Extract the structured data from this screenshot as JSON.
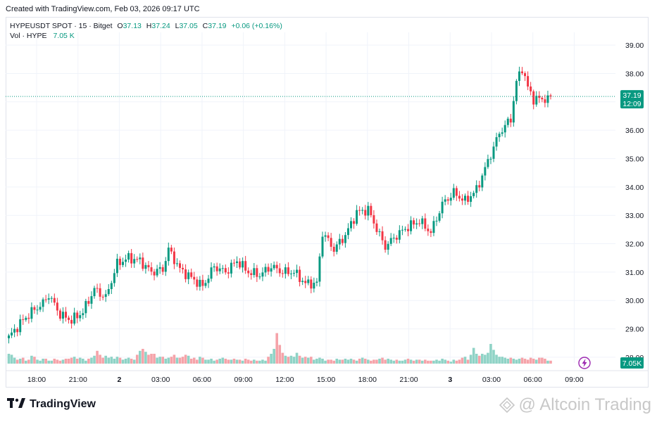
{
  "created_text": "Created with TradingView.com, Feb 03, 2026 09:17 UTC",
  "legend": {
    "symbol": "HYPEUSDT SPOT · 15 · Bitget",
    "open_label": "O",
    "open": "37.13",
    "high_label": "H",
    "high": "37.24",
    "low_label": "L",
    "low": "37.05",
    "close_label": "C",
    "close": "37.19",
    "change": "+0.06 (+0.16%)",
    "vol_label": "Vol · HYPE",
    "vol_value": "7.05 K"
  },
  "price_tag": {
    "price": "37.19",
    "countdown": "12:09"
  },
  "volume_tag": "7.05K",
  "branding": {
    "logo_text": "TradingView",
    "watermark": "@ Altcoin Trading"
  },
  "colors": {
    "up": "#089981",
    "down": "#f23645",
    "vol_up": "#8fd3c6",
    "vol_down": "#f5a3a9",
    "grid": "#f0f3fa",
    "axis_text": "#131722"
  },
  "chart_data": {
    "type": "candlestick",
    "symbol": "HYPEUSDT SPOT",
    "interval": "15",
    "exchange": "Bitget",
    "ylim": [
      27.8,
      39.3
    ],
    "y_ticks": [
      "39.00",
      "38.00",
      "37.00",
      "36.00",
      "35.00",
      "34.00",
      "33.00",
      "32.00",
      "31.00",
      "30.00",
      "29.00",
      "28.00"
    ],
    "x_ticks": [
      "18:00",
      "21:00",
      "2",
      "03:00",
      "06:00",
      "09:00",
      "12:00",
      "15:00",
      "18:00",
      "21:00",
      "3",
      "03:00",
      "06:00",
      "09:00"
    ],
    "last_price": 37.19,
    "close_anchors": [
      [
        0,
        28.7
      ],
      [
        4,
        29.2
      ],
      [
        8,
        29.6
      ],
      [
        12,
        29.9
      ],
      [
        14,
        30.2
      ],
      [
        18,
        29.5
      ],
      [
        22,
        29.3
      ],
      [
        26,
        29.6
      ],
      [
        30,
        30.4
      ],
      [
        34,
        30.1
      ],
      [
        38,
        31.3
      ],
      [
        42,
        31.5
      ],
      [
        46,
        31.4
      ],
      [
        50,
        31.0
      ],
      [
        54,
        31.1
      ],
      [
        56,
        31.8
      ],
      [
        60,
        31.1
      ],
      [
        64,
        30.8
      ],
      [
        68,
        30.5
      ],
      [
        72,
        31.2
      ],
      [
        76,
        31.0
      ],
      [
        80,
        31.4
      ],
      [
        84,
        31.0
      ],
      [
        88,
        30.9
      ],
      [
        92,
        31.2
      ],
      [
        96,
        31.0
      ],
      [
        100,
        31.0
      ],
      [
        104,
        30.6
      ],
      [
        108,
        30.6
      ],
      [
        110,
        32.4
      ],
      [
        114,
        31.8
      ],
      [
        118,
        32.3
      ],
      [
        122,
        33.1
      ],
      [
        126,
        33.2
      ],
      [
        130,
        32.3
      ],
      [
        132,
        31.9
      ],
      [
        136,
        32.3
      ],
      [
        140,
        32.6
      ],
      [
        144,
        32.8
      ],
      [
        148,
        32.4
      ],
      [
        152,
        33.4
      ],
      [
        156,
        33.8
      ],
      [
        160,
        33.5
      ],
      [
        164,
        33.9
      ],
      [
        168,
        34.9
      ],
      [
        172,
        35.9
      ],
      [
        176,
        36.4
      ],
      [
        178,
        37.7
      ],
      [
        180,
        38.2
      ],
      [
        182,
        37.5
      ],
      [
        184,
        37.1
      ],
      [
        188,
        37.1
      ],
      [
        192,
        37.1
      ],
      [
        196,
        37.0
      ],
      [
        199,
        37.4
      ],
      [
        202,
        37.2
      ]
    ],
    "volume_levels": [
      1,
      0.9,
      0.6,
      0.4,
      0.5,
      0.6,
      0.3,
      0.4,
      0.8,
      0.7,
      0.4,
      0.3,
      0.5,
      0.5,
      0.3,
      0.3,
      0.5,
      0.4,
      0.3,
      0.4,
      0.5,
      0.5,
      0.6,
      0.7,
      0.5,
      0.6,
      0.5,
      0.3,
      0.5,
      0.6,
      0.8,
      1.3,
      0.9,
      0.6,
      0.8,
      0.6,
      0.7,
      0.5,
      0.7,
      0.6,
      0.4,
      0.5,
      0.6,
      0.5,
      0.4,
      0.9,
      1.3,
      1.5,
      1.2,
      0.9,
      1.0,
      1.0,
      0.6,
      0.7,
      0.7,
      0.5,
      0.6,
      0.7,
      0.9,
      0.6,
      0.6,
      0.7,
      0.9,
      0.8,
      0.5,
      0.6,
      0.4,
      0.7,
      0.6,
      0.4,
      0.4,
      0.5,
      0.3,
      0.4,
      0.5,
      0.6,
      0.5,
      0.4,
      0.4,
      0.5,
      0.4,
      0.4,
      0.3,
      0.5,
      0.4,
      0.3,
      0.4,
      0.3,
      0.3,
      0.4,
      0.3,
      0.7,
      1.0,
      1.5,
      3.1,
      1.9,
      1.1,
      0.8,
      0.7,
      0.8,
      0.7,
      1.1,
      0.8,
      0.6,
      0.7,
      0.6,
      0.7,
      0.4,
      0.5,
      0.6,
      0.5,
      0.3,
      0.4,
      0.4,
      0.3,
      0.5,
      0.4,
      0.4,
      0.5,
      0.4,
      0.5,
      0.4,
      0.3,
      0.5,
      0.6,
      0.5,
      0.4,
      0.3,
      0.4,
      0.4,
      0.5,
      0.6,
      0.4,
      0.5,
      0.4,
      0.3,
      0.4,
      0.3,
      0.3,
      0.4,
      0.5,
      0.4,
      0.3,
      0.4,
      0.4,
      0.3,
      0.4,
      0.3,
      0.3,
      0.3,
      0.4,
      0.3,
      0.5,
      0.4,
      0.3,
      0.2,
      0.4,
      0.3,
      0.4,
      0.6,
      0.7,
      0.4,
      0.9,
      1.6,
      1.0,
      0.8,
      1.0,
      0.9,
      1.1,
      2.0,
      1.4,
      0.9,
      0.7,
      0.7,
      0.6,
      0.5,
      0.6,
      0.5,
      0.4,
      0.5,
      0.6,
      0.5,
      0.4,
      0.6,
      0.5,
      0.4,
      0.6,
      0.6,
      0.5,
      0.3,
      0.3
    ]
  }
}
